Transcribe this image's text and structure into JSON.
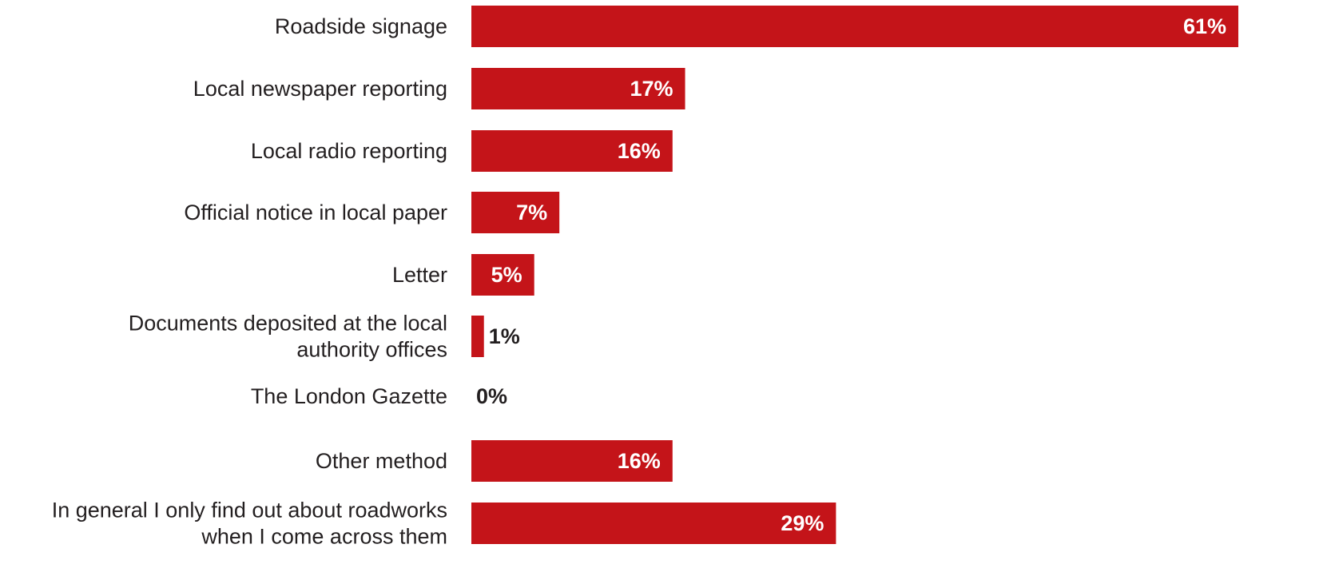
{
  "colors": {
    "bar": "#c41419",
    "label_inside": "#ffffff",
    "label_outside": "#231f20",
    "text": "#231f20"
  },
  "chart_data": {
    "type": "bar",
    "orientation": "horizontal",
    "title": "",
    "xlabel": "",
    "ylabel": "",
    "grid": false,
    "legend": "none",
    "xlim": [
      0,
      61
    ],
    "categories": [
      "Roadside signage",
      "Local newspaper reporting",
      "Local radio reporting",
      "Official notice in local paper",
      "Letter",
      "Documents deposited at the local authority offices",
      "The London Gazette",
      "Other method",
      "In general I only find out about roadworks when I come across them"
    ],
    "category_lines": [
      [
        "Roadside signage"
      ],
      [
        "Local newspaper reporting"
      ],
      [
        "Local radio reporting"
      ],
      [
        "Official notice in local paper"
      ],
      [
        "Letter"
      ],
      [
        "Documents deposited at the local",
        "authority offices"
      ],
      [
        "The London Gazette"
      ],
      [
        "Other method"
      ],
      [
        "In general I only find out about roadworks",
        "when I come across them"
      ]
    ],
    "values": [
      61,
      17,
      16,
      7,
      5,
      1,
      0,
      16,
      29
    ],
    "value_labels": [
      "61%",
      "17%",
      "16%",
      "7%",
      "5%",
      "1%",
      "0%",
      "16%",
      "29%"
    ]
  }
}
